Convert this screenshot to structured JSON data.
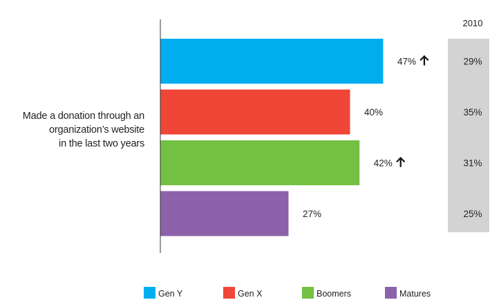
{
  "chart_data": {
    "type": "bar",
    "orientation": "horizontal",
    "category_label_lines": [
      "Made a donation through an",
      "organization’s website",
      "in the last two years"
    ],
    "series": [
      {
        "name": "Gen Y",
        "value": 47,
        "label": "47%",
        "trend": "up",
        "color": "#00aeef",
        "comparison": "29%"
      },
      {
        "name": "Gen X",
        "value": 40,
        "label": "40%",
        "trend": "",
        "color": "#ef4638",
        "comparison": "35%"
      },
      {
        "name": "Boomers",
        "value": 42,
        "label": "42%",
        "trend": "up",
        "color": "#74c043",
        "comparison": "31%"
      },
      {
        "name": "Matures",
        "value": 27,
        "label": "27%",
        "trend": "",
        "color": "#8c62aa",
        "comparison": "25%"
      }
    ],
    "comparison_header": "2010",
    "xlim": [
      0,
      60
    ],
    "grid": false,
    "legend_position": "bottom",
    "comparison_panel_color": "#d3d3d3"
  }
}
